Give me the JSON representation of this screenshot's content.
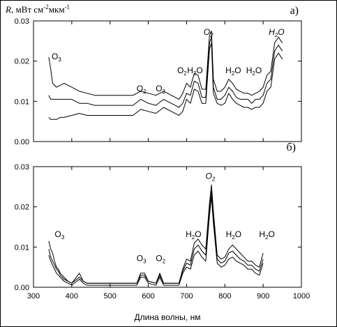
{
  "chart_data": [
    {
      "type": "line",
      "panel_label": "а)",
      "ylabel": "R, мВт см-2мкм-1",
      "ylabel_parts": {
        "symbol": "R",
        "rest": ", мВт см",
        "exp1": "-2",
        "mid": "мкм",
        "exp2": "-1"
      },
      "xlim": [
        300,
        1000
      ],
      "ylim": [
        0,
        0.03
      ],
      "yticks": [
        "0.00",
        "0.01",
        "0.02",
        "0.03"
      ],
      "x": [
        340,
        345,
        350,
        360,
        370,
        380,
        400,
        420,
        440,
        460,
        480,
        500,
        520,
        540,
        560,
        580,
        600,
        620,
        640,
        660,
        680,
        690,
        700,
        710,
        720,
        730,
        740,
        750,
        760,
        765,
        770,
        780,
        790,
        800,
        810,
        820,
        830,
        840,
        850,
        860,
        870,
        880,
        890,
        900,
        910,
        920,
        930,
        940,
        950
      ],
      "series": [
        {
          "values": [
            0.021,
            0.018,
            0.0145,
            0.0135,
            0.014,
            0.0145,
            0.0135,
            0.0125,
            0.012,
            0.0115,
            0.0115,
            0.0115,
            0.0115,
            0.0115,
            0.0115,
            0.0125,
            0.012,
            0.0115,
            0.0125,
            0.0115,
            0.0105,
            0.012,
            0.0145,
            0.0135,
            0.017,
            0.0165,
            0.013,
            0.013,
            0.0265,
            0.0275,
            0.0155,
            0.0125,
            0.0125,
            0.0135,
            0.0155,
            0.0145,
            0.013,
            0.0125,
            0.012,
            0.012,
            0.0115,
            0.012,
            0.0125,
            0.0135,
            0.0165,
            0.0175,
            0.0245,
            0.026,
            0.0245
          ]
        },
        {
          "values": [
            0.0115,
            0.0105,
            0.0105,
            0.0105,
            0.0105,
            0.0105,
            0.0105,
            0.0095,
            0.0095,
            0.009,
            0.009,
            0.009,
            0.009,
            0.009,
            0.009,
            0.0105,
            0.0095,
            0.009,
            0.0105,
            0.0095,
            0.0085,
            0.0095,
            0.012,
            0.0115,
            0.015,
            0.0145,
            0.011,
            0.011,
            0.0245,
            0.026,
            0.0135,
            0.0105,
            0.0105,
            0.0115,
            0.0135,
            0.0125,
            0.011,
            0.0105,
            0.0105,
            0.0105,
            0.0095,
            0.0105,
            0.0105,
            0.0115,
            0.0145,
            0.0155,
            0.0225,
            0.024,
            0.0225
          ]
        },
        {
          "values": [
            0.006,
            0.0055,
            0.0055,
            0.0055,
            0.006,
            0.006,
            0.0065,
            0.007,
            0.0065,
            0.0065,
            0.0065,
            0.0065,
            0.0065,
            0.0065,
            0.0065,
            0.008,
            0.0075,
            0.007,
            0.0085,
            0.0075,
            0.0065,
            0.0075,
            0.0105,
            0.0095,
            0.013,
            0.0125,
            0.0095,
            0.0095,
            0.023,
            0.0245,
            0.012,
            0.0095,
            0.009,
            0.0095,
            0.012,
            0.0105,
            0.0095,
            0.009,
            0.0085,
            0.0085,
            0.008,
            0.0085,
            0.0085,
            0.0095,
            0.0125,
            0.0135,
            0.0205,
            0.022,
            0.0205
          ]
        }
      ],
      "annotations": [
        {
          "text": "O3",
          "base": "O",
          "sub": "3",
          "x": 360,
          "y": 0.0205,
          "italic": false
        },
        {
          "text": "O2",
          "base": "O",
          "sub": "2",
          "x": 582,
          "y": 0.0125,
          "italic": false
        },
        {
          "text": "O2",
          "base": "O",
          "sub": "2",
          "x": 632,
          "y": 0.0125,
          "italic": false
        },
        {
          "text": "O2",
          "base": "O",
          "sub": "2",
          "x": 688,
          "y": 0.017,
          "italic": false
        },
        {
          "text": "H2O",
          "base": "H",
          "sub": "2",
          "tail": "O",
          "x": 722,
          "y": 0.017,
          "italic": false
        },
        {
          "text": "O2",
          "base": "O",
          "sub": "2",
          "x": 757,
          "y": 0.0265,
          "italic": true
        },
        {
          "text": "H2O",
          "base": "H",
          "sub": "2",
          "tail": "O",
          "x": 822,
          "y": 0.017,
          "italic": false
        },
        {
          "text": "H2O",
          "base": "H",
          "sub": "2",
          "tail": "O",
          "x": 876,
          "y": 0.017,
          "italic": false
        },
        {
          "text": "H2O",
          "base": "H",
          "sub": "2",
          "tail": "O",
          "x": 935,
          "y": 0.0265,
          "italic": true
        }
      ]
    },
    {
      "type": "line",
      "panel_label": "б)",
      "xlabel": "Длина волны, нм",
      "xlim": [
        300,
        1000
      ],
      "ylim": [
        0,
        0.03
      ],
      "xticks": [
        "300",
        "400",
        "500",
        "600",
        "700",
        "800",
        "900",
        "1000"
      ],
      "yticks": [
        "0.00",
        "0.01",
        "0.02",
        "0.03"
      ],
      "x": [
        340,
        345,
        350,
        355,
        360,
        365,
        370,
        380,
        390,
        400,
        420,
        430,
        440,
        460,
        500,
        540,
        570,
        580,
        590,
        600,
        620,
        630,
        640,
        680,
        690,
        700,
        710,
        720,
        730,
        740,
        750,
        760,
        765,
        770,
        780,
        790,
        800,
        810,
        820,
        830,
        840,
        850,
        860,
        870,
        880,
        890,
        900
      ],
      "series": [
        {
          "values": [
            0.0115,
            0.0095,
            0.0085,
            0.0065,
            0.005,
            0.0045,
            0.0035,
            0.0025,
            0.0015,
            0.001,
            0.0035,
            0.0015,
            0.001,
            0.001,
            0.001,
            0.001,
            0.001,
            0.0035,
            0.0035,
            0.0015,
            0.001,
            0.0035,
            0.001,
            0.001,
            0.0045,
            0.007,
            0.0065,
            0.011,
            0.012,
            0.0105,
            0.0095,
            0.021,
            0.0255,
            0.019,
            0.008,
            0.007,
            0.0075,
            0.0095,
            0.0105,
            0.0095,
            0.0085,
            0.0075,
            0.0065,
            0.0065,
            0.0055,
            0.005,
            0.0085
          ]
        },
        {
          "values": [
            0.0095,
            0.0075,
            0.0065,
            0.0055,
            0.0045,
            0.004,
            0.003,
            0.002,
            0.0015,
            0.001,
            0.0025,
            0.0015,
            0.001,
            0.001,
            0.001,
            0.001,
            0.001,
            0.003,
            0.003,
            0.0015,
            0.001,
            0.003,
            0.001,
            0.001,
            0.004,
            0.006,
            0.0055,
            0.0095,
            0.0105,
            0.009,
            0.008,
            0.0195,
            0.024,
            0.0175,
            0.007,
            0.006,
            0.0065,
            0.0085,
            0.009,
            0.008,
            0.007,
            0.0065,
            0.0055,
            0.0055,
            0.0045,
            0.004,
            0.007
          ]
        },
        {
          "values": [
            0.008,
            0.0065,
            0.0055,
            0.0045,
            0.0035,
            0.003,
            0.0025,
            0.0015,
            0.001,
            0.0005,
            0.002,
            0.001,
            0.0005,
            0.0005,
            0.0005,
            0.0005,
            0.0005,
            0.0025,
            0.0025,
            0.001,
            0.0005,
            0.0025,
            0.0005,
            0.0005,
            0.0035,
            0.005,
            0.0045,
            0.008,
            0.009,
            0.0075,
            0.0065,
            0.018,
            0.0225,
            0.016,
            0.006,
            0.005,
            0.0055,
            0.007,
            0.0075,
            0.0065,
            0.006,
            0.0055,
            0.0045,
            0.0045,
            0.0035,
            0.003,
            0.006
          ]
        }
      ],
      "annotations": [
        {
          "text": "O3",
          "base": "O",
          "sub": "3",
          "x": 368,
          "y": 0.0125,
          "italic": false
        },
        {
          "text": "O3",
          "base": "O",
          "sub": "3",
          "x": 582,
          "y": 0.0065,
          "italic": false
        },
        {
          "text": "O2",
          "base": "O",
          "sub": "2",
          "x": 632,
          "y": 0.0065,
          "italic": false
        },
        {
          "text": "H2O",
          "base": "H",
          "sub": "2",
          "tail": "O",
          "x": 718,
          "y": 0.0125,
          "italic": false
        },
        {
          "text": "O2",
          "base": "O",
          "sub": "2",
          "x": 762,
          "y": 0.027,
          "italic": true
        },
        {
          "text": "H2O",
          "base": "H",
          "sub": "2",
          "tail": "O",
          "x": 823,
          "y": 0.0125,
          "italic": false
        },
        {
          "text": "H2O",
          "base": "H",
          "sub": "2",
          "tail": "O",
          "x": 910,
          "y": 0.0125,
          "italic": false
        }
      ]
    }
  ]
}
